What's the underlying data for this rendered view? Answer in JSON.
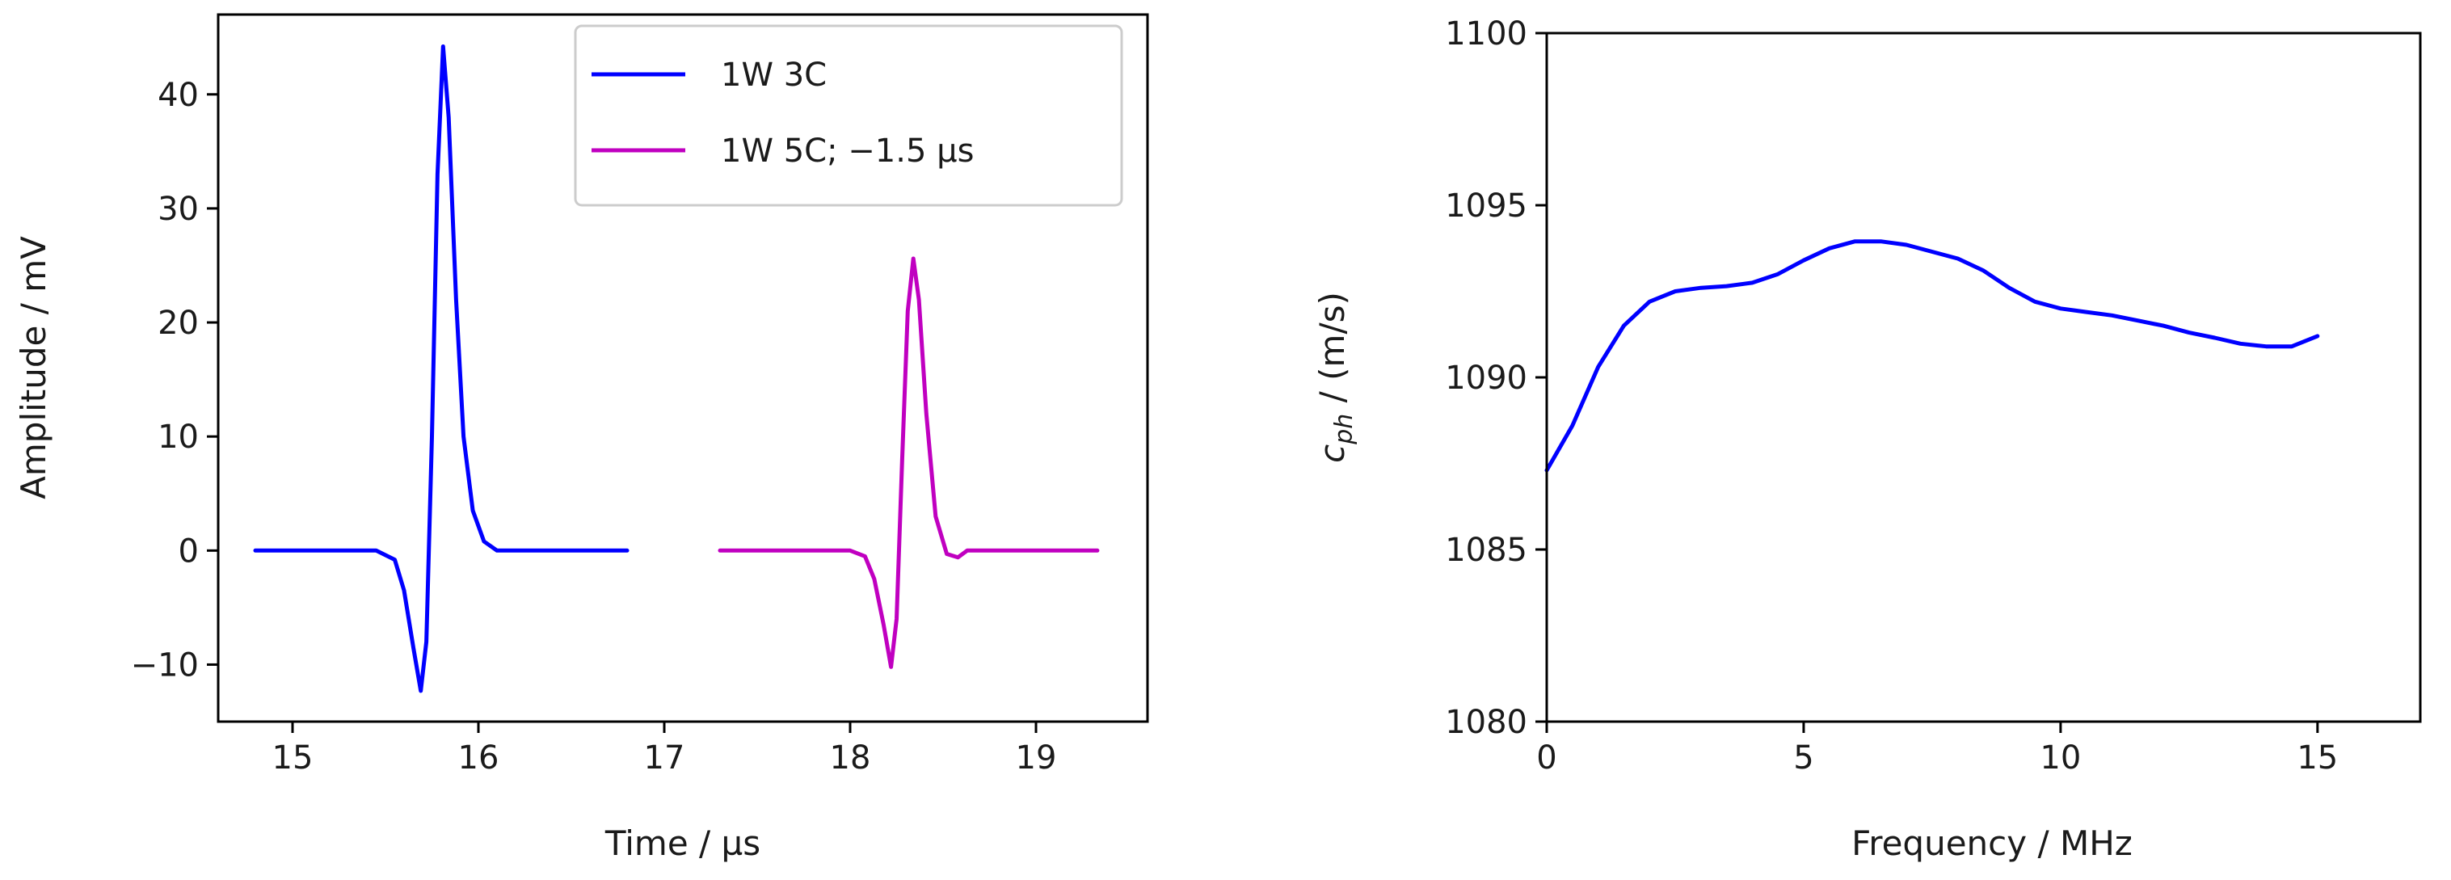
{
  "chart_data": [
    {
      "type": "line",
      "title": "",
      "xlabel": "Time / µs",
      "ylabel": "Amplitude / mV",
      "xlim": [
        14.6,
        19.6
      ],
      "ylim": [
        -15,
        47
      ],
      "xticks": [
        15,
        16,
        17,
        18,
        19
      ],
      "xtick_labels": [
        "15",
        "16",
        "17",
        "18",
        "19"
      ],
      "yticks": [
        -10,
        0,
        10,
        20,
        30,
        40
      ],
      "ytick_labels": [
        "−10",
        "0",
        "10",
        "20",
        "30",
        "40"
      ],
      "grid": false,
      "legend_position": "top-right",
      "series": [
        {
          "name": "1W 3C",
          "color": "#0000ff",
          "x": [
            14.8,
            15.45,
            15.55,
            15.6,
            15.65,
            15.69,
            15.72,
            15.75,
            15.78,
            15.81,
            15.84,
            15.88,
            15.92,
            15.97,
            16.03,
            16.1,
            16.2,
            16.8
          ],
          "y": [
            0,
            0,
            -0.8,
            -3.5,
            -8.5,
            -12.3,
            -8,
            10,
            33,
            44.2,
            38,
            22,
            10,
            3.5,
            0.8,
            0,
            0,
            0
          ]
        },
        {
          "name": "1W 5C; −1.5 µs",
          "color": "#c000c0",
          "x": [
            17.3,
            18.0,
            18.08,
            18.13,
            18.18,
            18.22,
            18.25,
            18.28,
            18.31,
            18.34,
            18.37,
            18.41,
            18.46,
            18.52,
            18.58,
            18.63,
            18.7,
            19.33
          ],
          "y": [
            0,
            0,
            -0.5,
            -2.5,
            -6.5,
            -10.2,
            -6,
            8,
            21,
            25.6,
            22,
            12,
            3,
            -0.3,
            -0.6,
            0,
            0,
            0
          ]
        }
      ]
    },
    {
      "type": "line",
      "title": "",
      "xlabel": "Frequency / MHz",
      "ylabel_main": "c",
      "ylabel_sub": "ph",
      "ylabel_rest": " / (m/s)",
      "xlim": [
        0,
        17
      ],
      "ylim": [
        1080,
        1100
      ],
      "xticks": [
        0,
        5,
        10,
        15
      ],
      "xtick_labels": [
        "0",
        "5",
        "10",
        "15"
      ],
      "yticks": [
        1080,
        1085,
        1090,
        1095,
        1100
      ],
      "ytick_labels": [
        "1080",
        "1085",
        "1090",
        "1095",
        "1100"
      ],
      "grid": false,
      "series": [
        {
          "name": "c_ph",
          "color": "#0000ff",
          "x": [
            0,
            0.5,
            1,
            1.5,
            2,
            2.5,
            3,
            3.5,
            4,
            4.5,
            5,
            5.5,
            6,
            6.5,
            7,
            7.5,
            8,
            8.5,
            9,
            9.5,
            10,
            10.5,
            11,
            11.5,
            12,
            12.5,
            13,
            13.5,
            14,
            14.5,
            15
          ],
          "y": [
            1087.3,
            1088.6,
            1090.3,
            1091.5,
            1092.2,
            1092.5,
            1092.6,
            1092.65,
            1092.75,
            1093.0,
            1093.4,
            1093.75,
            1093.95,
            1093.95,
            1093.85,
            1093.65,
            1093.45,
            1093.1,
            1092.6,
            1092.2,
            1092.0,
            1091.9,
            1091.8,
            1091.65,
            1091.5,
            1091.3,
            1091.15,
            1090.98,
            1090.9,
            1090.9,
            1091.2
          ]
        }
      ]
    }
  ]
}
